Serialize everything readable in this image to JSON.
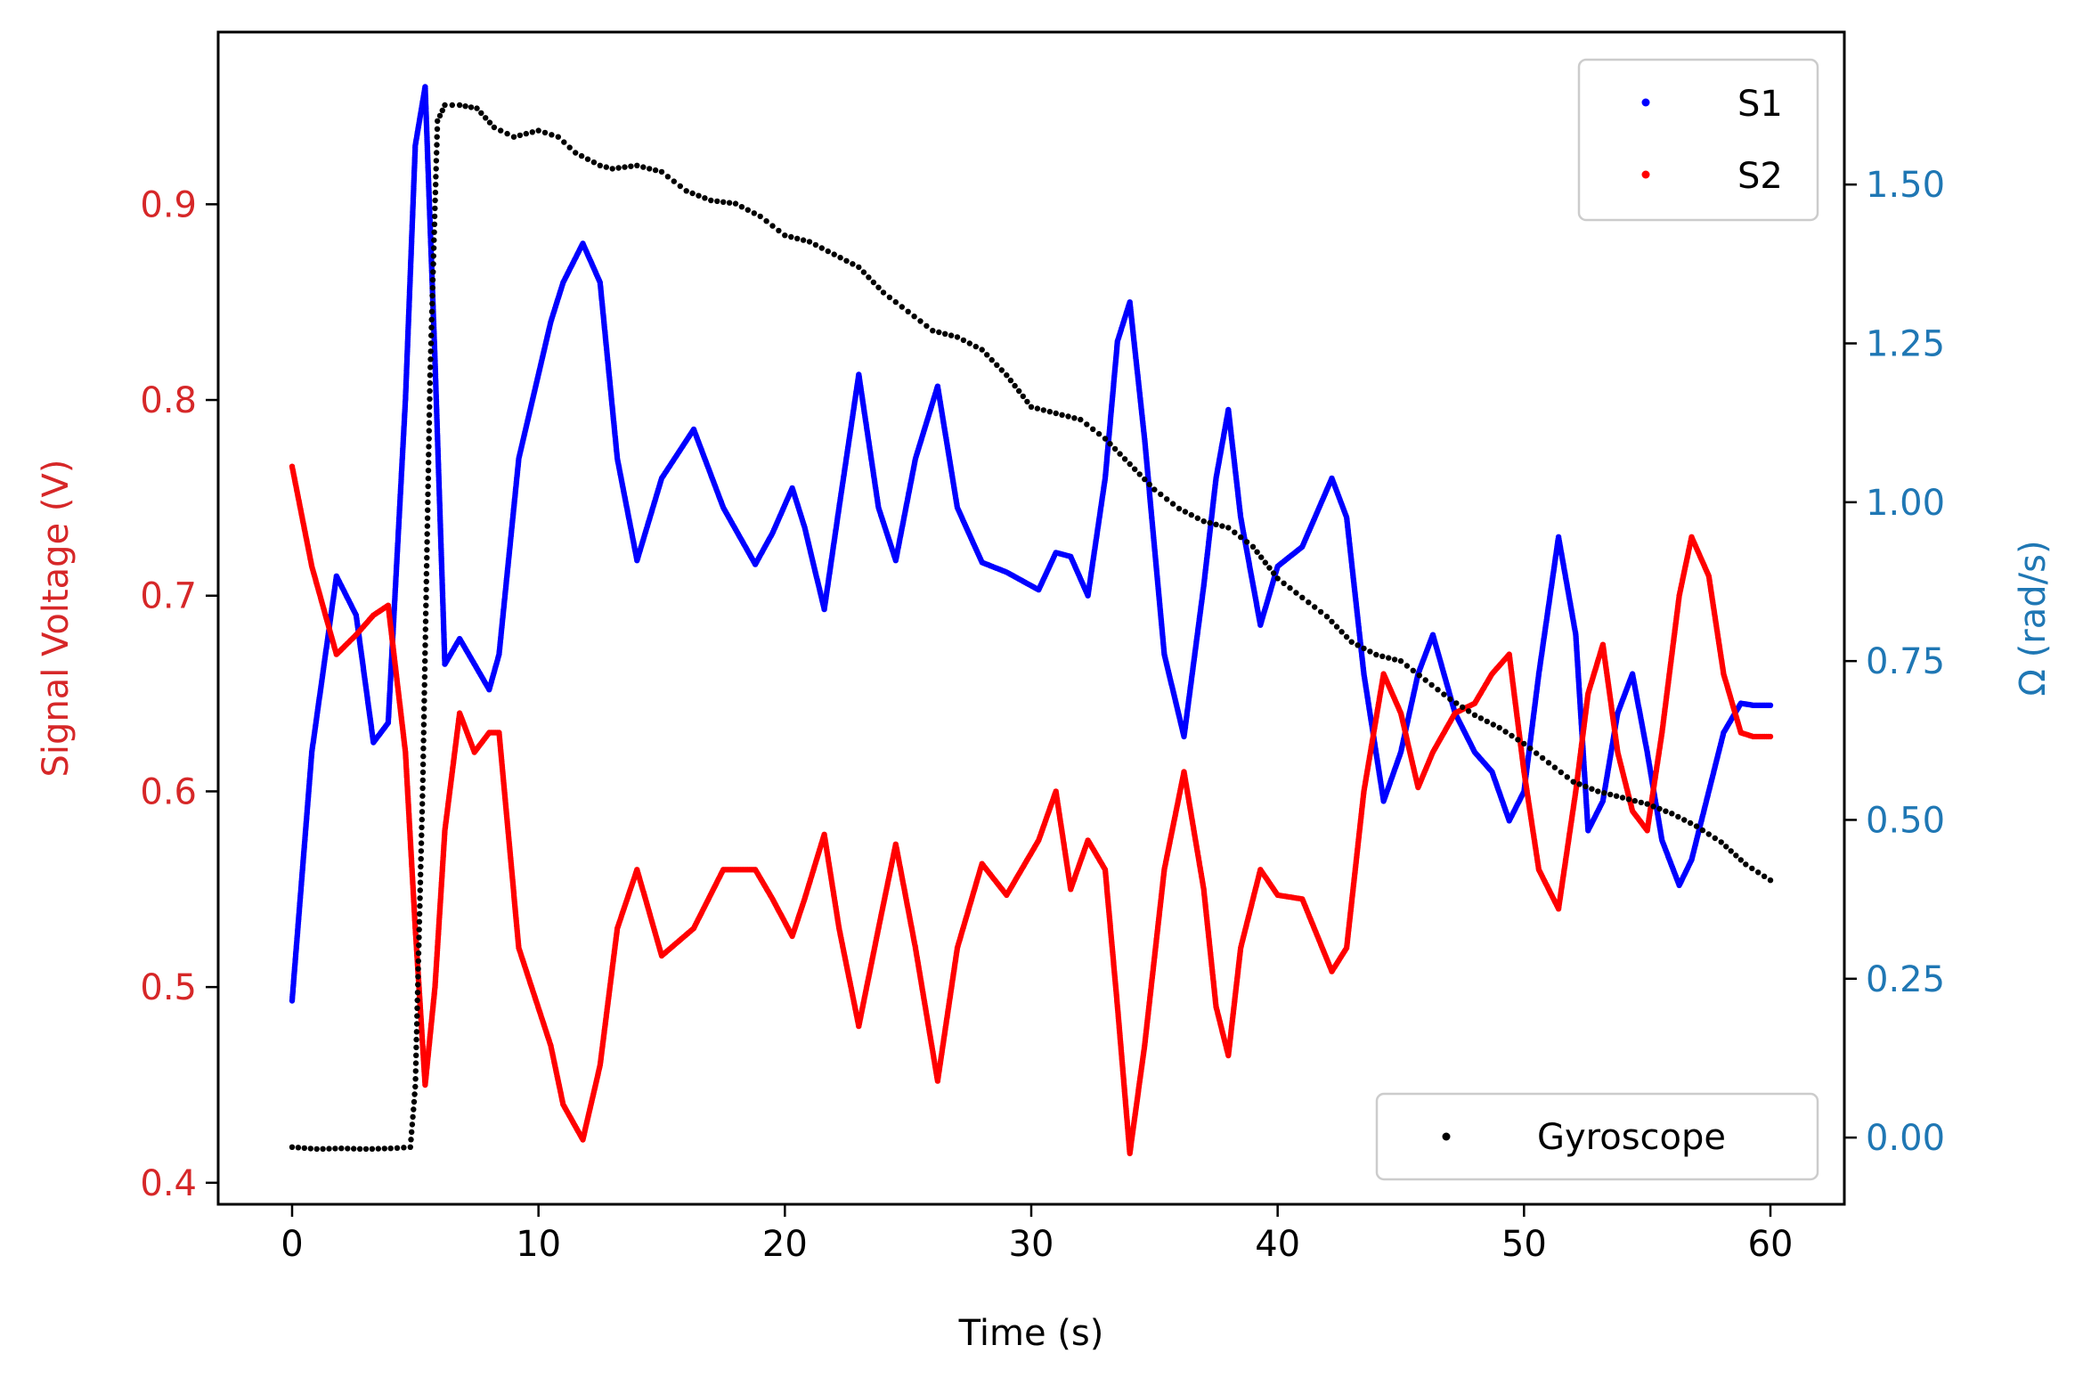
{
  "chart_data": {
    "type": "scatter",
    "xlabel": "Time (s)",
    "ylabel_left": "Signal Voltage (V)",
    "ylabel_right": "Ω (rad/s)",
    "xlim": [
      -3,
      63
    ],
    "ylim_left": [
      0.389,
      0.988
    ],
    "ylim_right": [
      -0.105,
      1.74
    ],
    "x_ticks": [
      0,
      10,
      20,
      30,
      40,
      50,
      60
    ],
    "y_left_ticks": [
      0.4,
      0.5,
      0.6,
      0.7,
      0.8,
      0.9
    ],
    "y_right_ticks": [
      0.0,
      0.25,
      0.5,
      0.75,
      1.0,
      1.25,
      1.5
    ],
    "y_left_tick_labels": [
      "0.4",
      "0.5",
      "0.6",
      "0.7",
      "0.8",
      "0.9"
    ],
    "y_right_tick_labels": [
      "0.00",
      "0.25",
      "0.50",
      "0.75",
      "1.00",
      "1.25",
      "1.50"
    ],
    "grid": false,
    "left_axis_color": "#d62728",
    "right_axis_color": "#1f77b4",
    "legends": [
      {
        "placement": "top-right",
        "entries": [
          "S1",
          "S2"
        ]
      },
      {
        "placement": "bottom-right",
        "entries": [
          "Gyroscope"
        ]
      }
    ],
    "series": [
      {
        "name": "S1",
        "axis": "left",
        "color": "#0000ff",
        "x": [
          0,
          0.8,
          1.8,
          2.6,
          3.3,
          3.9,
          4.6,
          5.0,
          5.4,
          5.8,
          6.2,
          6.8,
          7.4,
          8.0,
          8.4,
          9.2,
          10.5,
          11.0,
          11.8,
          12.5,
          13.2,
          14.0,
          15.0,
          16.3,
          17.5,
          18.8,
          19.5,
          20.3,
          20.8,
          21.6,
          22.2,
          23.0,
          23.8,
          24.5,
          25.3,
          26.2,
          27.0,
          28.0,
          29.0,
          30.3,
          31.0,
          31.6,
          32.3,
          33.0,
          33.5,
          34.0,
          34.6,
          35.4,
          36.2,
          37.0,
          37.5,
          38.0,
          38.5,
          39.3,
          40.0,
          41.0,
          42.2,
          42.8,
          43.5,
          44.3,
          45.0,
          45.7,
          46.3,
          47.2,
          48.0,
          48.7,
          49.4,
          50.0,
          50.6,
          51.4,
          52.1,
          52.6,
          53.2,
          53.8,
          54.4,
          55.0,
          55.6,
          56.3,
          56.8,
          57.5,
          58.1,
          58.8,
          59.3,
          60.0
        ],
        "y": [
          0.493,
          0.62,
          0.71,
          0.69,
          0.625,
          0.635,
          0.8,
          0.93,
          0.96,
          0.82,
          0.665,
          0.678,
          0.665,
          0.652,
          0.67,
          0.77,
          0.84,
          0.86,
          0.88,
          0.86,
          0.77,
          0.718,
          0.76,
          0.785,
          0.745,
          0.716,
          0.732,
          0.755,
          0.735,
          0.693,
          0.745,
          0.813,
          0.745,
          0.718,
          0.77,
          0.807,
          0.745,
          0.717,
          0.712,
          0.703,
          0.722,
          0.72,
          0.7,
          0.76,
          0.83,
          0.85,
          0.78,
          0.67,
          0.628,
          0.705,
          0.76,
          0.795,
          0.74,
          0.685,
          0.715,
          0.725,
          0.76,
          0.74,
          0.66,
          0.595,
          0.62,
          0.66,
          0.68,
          0.64,
          0.62,
          0.61,
          0.585,
          0.6,
          0.66,
          0.73,
          0.68,
          0.58,
          0.595,
          0.64,
          0.66,
          0.62,
          0.575,
          0.552,
          0.565,
          0.6,
          0.63,
          0.645,
          0.644,
          0.644
        ]
      },
      {
        "name": "S2",
        "axis": "left",
        "color": "#ff0000",
        "x": [
          0,
          0.8,
          1.8,
          2.6,
          3.3,
          3.9,
          4.6,
          5.0,
          5.4,
          5.8,
          6.2,
          6.8,
          7.4,
          8.0,
          8.4,
          9.2,
          10.5,
          11.0,
          11.8,
          12.5,
          13.2,
          14.0,
          15.0,
          16.3,
          17.5,
          18.8,
          19.5,
          20.3,
          20.8,
          21.6,
          22.2,
          23.0,
          23.8,
          24.5,
          25.3,
          26.2,
          27.0,
          28.0,
          29.0,
          30.3,
          31.0,
          31.6,
          32.3,
          33.0,
          33.5,
          34.0,
          34.6,
          35.4,
          36.2,
          37.0,
          37.5,
          38.0,
          38.5,
          39.3,
          40.0,
          41.0,
          42.2,
          42.8,
          43.5,
          44.3,
          45.0,
          45.7,
          46.3,
          47.2,
          48.0,
          48.7,
          49.4,
          50.0,
          50.6,
          51.4,
          52.1,
          52.6,
          53.2,
          53.8,
          54.4,
          55.0,
          55.6,
          56.3,
          56.8,
          57.5,
          58.1,
          58.8,
          59.3,
          60.0
        ],
        "y": [
          0.766,
          0.715,
          0.67,
          0.68,
          0.69,
          0.695,
          0.62,
          0.53,
          0.45,
          0.5,
          0.58,
          0.64,
          0.62,
          0.63,
          0.63,
          0.52,
          0.47,
          0.44,
          0.422,
          0.46,
          0.53,
          0.56,
          0.516,
          0.53,
          0.56,
          0.56,
          0.545,
          0.526,
          0.545,
          0.578,
          0.53,
          0.48,
          0.53,
          0.573,
          0.52,
          0.452,
          0.52,
          0.563,
          0.547,
          0.575,
          0.6,
          0.55,
          0.575,
          0.56,
          0.49,
          0.415,
          0.47,
          0.56,
          0.61,
          0.55,
          0.49,
          0.465,
          0.52,
          0.56,
          0.547,
          0.545,
          0.508,
          0.52,
          0.6,
          0.66,
          0.64,
          0.602,
          0.62,
          0.64,
          0.645,
          0.66,
          0.67,
          0.61,
          0.56,
          0.54,
          0.6,
          0.65,
          0.675,
          0.62,
          0.59,
          0.58,
          0.63,
          0.7,
          0.73,
          0.71,
          0.66,
          0.63,
          0.628,
          0.628
        ]
      },
      {
        "name": "Gyroscope",
        "axis": "right",
        "color": "#000000",
        "x": [
          0,
          1,
          2,
          3,
          4,
          4.8,
          5.0,
          5.3,
          5.6,
          5.9,
          6.2,
          6.8,
          7.5,
          8.2,
          9.0,
          10.0,
          10.8,
          11.5,
          12.5,
          13.0,
          14.0,
          15.0,
          16.0,
          17.0,
          18.0,
          19.0,
          20.0,
          21.0,
          22.0,
          23.0,
          24.0,
          25.0,
          26.0,
          27.0,
          28.0,
          29.0,
          30.0,
          31.0,
          32.0,
          33.0,
          34.0,
          35.0,
          36.0,
          37.0,
          38.0,
          39.0,
          40.0,
          41.0,
          42.0,
          43.0,
          44.0,
          45.0,
          46.0,
          47.0,
          48.0,
          49.0,
          50.0,
          51.0,
          52.0,
          53.0,
          54.0,
          55.0,
          56.0,
          57.0,
          58.0,
          59.0,
          60.0
        ],
        "y": [
          -0.015,
          -0.018,
          -0.017,
          -0.018,
          -0.017,
          -0.015,
          0.08,
          0.55,
          1.2,
          1.6,
          1.625,
          1.625,
          1.62,
          1.59,
          1.575,
          1.585,
          1.575,
          1.55,
          1.53,
          1.525,
          1.53,
          1.52,
          1.49,
          1.475,
          1.47,
          1.45,
          1.42,
          1.41,
          1.39,
          1.37,
          1.33,
          1.3,
          1.27,
          1.26,
          1.24,
          1.2,
          1.15,
          1.14,
          1.13,
          1.1,
          1.06,
          1.02,
          0.99,
          0.97,
          0.96,
          0.93,
          0.88,
          0.85,
          0.82,
          0.78,
          0.76,
          0.75,
          0.72,
          0.69,
          0.665,
          0.645,
          0.62,
          0.59,
          0.56,
          0.545,
          0.535,
          0.525,
          0.51,
          0.49,
          0.465,
          0.43,
          0.405
        ]
      }
    ]
  }
}
